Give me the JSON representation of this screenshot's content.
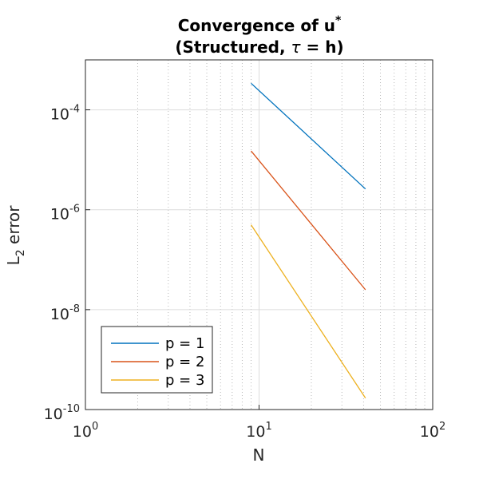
{
  "chart_data": {
    "type": "line",
    "title_line1": "Convergence of u",
    "title_line1_sup": "*",
    "title_line2_pre": "(Structured, ",
    "title_line2_tau": "τ",
    "title_line2_post": " = h)",
    "xlabel": "N",
    "ylabel_main": "L",
    "ylabel_sub": "2",
    "ylabel_rest": " error",
    "xscale": "log",
    "yscale": "log",
    "xlim": [
      1,
      100
    ],
    "ylim": [
      1e-10,
      0.001
    ],
    "x_ticks": [
      {
        "value": 1,
        "base": "10",
        "exp": "0"
      },
      {
        "value": 10,
        "base": "10",
        "exp": "1"
      },
      {
        "value": 100,
        "base": "10",
        "exp": "2"
      }
    ],
    "y_ticks": [
      {
        "value": 1e-10,
        "base": "10",
        "exp": "-10"
      },
      {
        "value": 1e-08,
        "base": "10",
        "exp": "-8"
      },
      {
        "value": 1e-06,
        "base": "10",
        "exp": "-6"
      },
      {
        "value": 0.0001,
        "base": "10",
        "exp": "-4"
      }
    ],
    "grid": "major solid, minor dotted (x)",
    "legend_position": "bottom-left",
    "series": [
      {
        "name": "p = 1",
        "color": "#0072BD",
        "x": [
          9,
          41
        ],
        "y": [
          0.00034,
          2.6e-06
        ]
      },
      {
        "name": "p = 2",
        "color": "#D95319",
        "x": [
          9,
          41
        ],
        "y": [
          1.5e-05,
          2.5e-08
        ]
      },
      {
        "name": "p = 3",
        "color": "#EDB120",
        "x": [
          9,
          41
        ],
        "y": [
          5e-07,
          1.7e-10
        ]
      }
    ]
  }
}
